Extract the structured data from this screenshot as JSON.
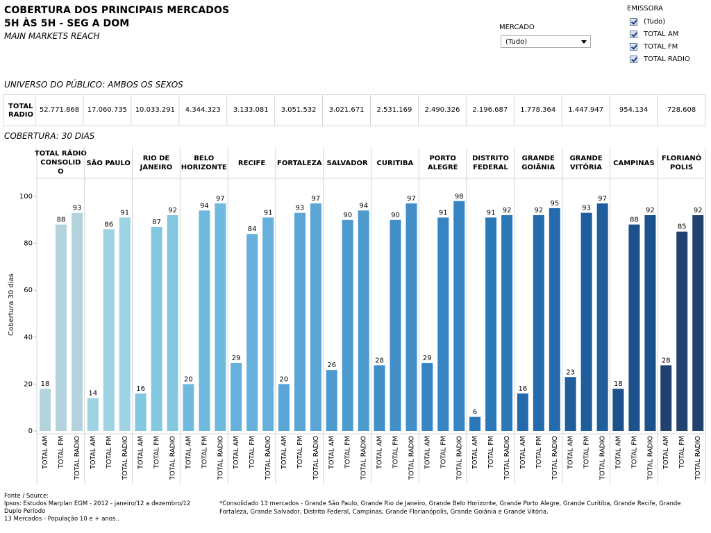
{
  "header": {
    "title_line1": "COBERTURA DOS PRINCIPAIS MERCADOS",
    "title_line2": "5H ÀS 5H - SEG A DOM",
    "subtitle": "MAIN MARKETS REACH"
  },
  "filters": {
    "mercado_label": "MERCADO",
    "mercado_value": "(Tudo)",
    "emissora_label": "EMISSORA",
    "emissora_options": [
      {
        "label": "(Tudo)",
        "checked": true
      },
      {
        "label": "TOTAL AM",
        "checked": true
      },
      {
        "label": "TOTAL FM",
        "checked": true
      },
      {
        "label": "TOTAL RADIO",
        "checked": true
      }
    ]
  },
  "universe": {
    "label": "UNIVERSO DO PÚBLICO: AMBOS OS SEXOS",
    "row_label": [
      "TOTAL",
      "RADIO"
    ],
    "values": [
      "52.771.868",
      "17.060.735",
      "10.033.291",
      "4.344.323",
      "3.133.081",
      "3.051.532",
      "3.021.671",
      "2.531.169",
      "2.490.326",
      "2.196.687",
      "1.778.364",
      "1.447.947",
      "954.134",
      "728.608"
    ]
  },
  "coverage_label": "COBERTURA: 30 DIAS",
  "chart_data": {
    "type": "bar",
    "ylabel": "Cobertura 30 dias",
    "ylim": [
      0,
      100
    ],
    "yticks": [
      0,
      20,
      40,
      60,
      80,
      100
    ],
    "categories": [
      "TOTAL AM",
      "TOTAL FM",
      "TOTAL RADIO"
    ],
    "groups": [
      {
        "label": [
          "TOTAL RÁDIO",
          "CONSOLID",
          "O"
        ],
        "values": [
          18,
          88,
          93
        ],
        "color": "#b3d4dd"
      },
      {
        "label": [
          "SÃO PAULO"
        ],
        "values": [
          14,
          86,
          91
        ],
        "color": "#9dd3e2"
      },
      {
        "label": [
          "RIO DE",
          "JANEIRO"
        ],
        "values": [
          16,
          87,
          92
        ],
        "color": "#83c7e1"
      },
      {
        "label": [
          "BELO",
          "HORIZONTE"
        ],
        "values": [
          20,
          94,
          97
        ],
        "color": "#70b9df"
      },
      {
        "label": [
          "RECIFE"
        ],
        "values": [
          29,
          84,
          91
        ],
        "color": "#66b0dc"
      },
      {
        "label": [
          "FORTALEZA"
        ],
        "values": [
          20,
          93,
          97
        ],
        "color": "#5aa5d6"
      },
      {
        "label": [
          "SALVADOR"
        ],
        "values": [
          26,
          90,
          94
        ],
        "color": "#4d9acf"
      },
      {
        "label": [
          "CURITIBA"
        ],
        "values": [
          28,
          90,
          97
        ],
        "color": "#418ec8"
      },
      {
        "label": [
          "PORTO",
          "ALEGRE"
        ],
        "values": [
          29,
          91,
          98
        ],
        "color": "#3684c2"
      },
      {
        "label": [
          "DISTRITO",
          "FEDERAL"
        ],
        "values": [
          6,
          91,
          92
        ],
        "color": "#2b78b8"
      },
      {
        "label": [
          "GRANDE",
          "GOIÂNIA"
        ],
        "values": [
          16,
          92,
          95
        ],
        "color": "#256aac"
      },
      {
        "label": [
          "GRANDE",
          "VITÓRIA"
        ],
        "values": [
          23,
          93,
          97
        ],
        "color": "#205d9d"
      },
      {
        "label": [
          "CAMPINAS"
        ],
        "values": [
          18,
          88,
          92
        ],
        "color": "#1d518c"
      },
      {
        "label": [
          "FLORIANÓ",
          "POLIS"
        ],
        "values": [
          28,
          85,
          92
        ],
        "color": "#22426e"
      }
    ]
  },
  "footer": {
    "fonte_lines": [
      "Fonte / Source:",
      "Ipsos: Estudos Marplan EGM - 2012 - janeiro/12 a dezembro/12",
      "Duplo Período",
      "13 Mercados - População 10 e + anos.."
    ],
    "nota": "*Consolidado 13 mercados - Grande São Paulo, Grande Rio de Janeiro, Grande Belo Horizonte, Grande Porto Alegre, Grande Curitiba, Grande Recife, Grande Fortaleza, Grande Salvador, Distrito Federal, Campinas, Grande Florianópolis, Grande Goiânia e Grande Vitória."
  }
}
